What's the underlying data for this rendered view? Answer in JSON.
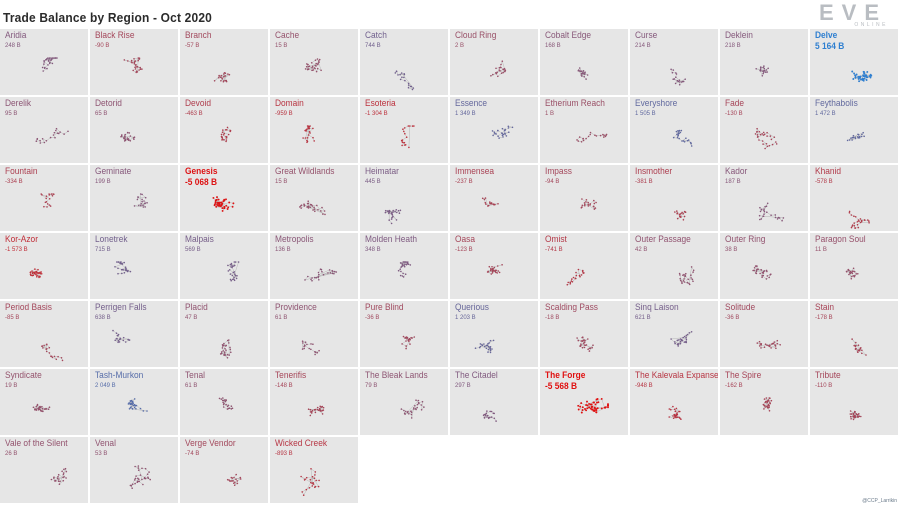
{
  "title": "Trade Balance by Region - Oct 2020",
  "logo": {
    "word": "EVE",
    "sub": "ONLINE"
  },
  "credit": "@CCP_Larrikin",
  "colors": {
    "positive_max": "#2f7fd0",
    "negative_max": "#e01010",
    "neutral": "#9b4f66",
    "cell_bg": "#e6e6e6"
  },
  "chart_data": {
    "type": "small-multiples",
    "title": "Trade Balance by Region - Oct 2020",
    "unit": "B",
    "regions": [
      {
        "name": "Aridia",
        "value_label": "248 B",
        "value": 248
      },
      {
        "name": "Black Rise",
        "value_label": "-90 B",
        "value": -90
      },
      {
        "name": "Branch",
        "value_label": "-57 B",
        "value": -57
      },
      {
        "name": "Cache",
        "value_label": "15 B",
        "value": 15
      },
      {
        "name": "Catch",
        "value_label": "744 B",
        "value": 744
      },
      {
        "name": "Cloud Ring",
        "value_label": "2 B",
        "value": 2
      },
      {
        "name": "Cobalt Edge",
        "value_label": "168 B",
        "value": 168
      },
      {
        "name": "Curse",
        "value_label": "214 B",
        "value": 214
      },
      {
        "name": "Deklein",
        "value_label": "218 B",
        "value": 218
      },
      {
        "name": "Delve",
        "value_label": "5 164 B",
        "value": 5164
      },
      {
        "name": "Derelik",
        "value_label": "95 B",
        "value": 95
      },
      {
        "name": "Detorid",
        "value_label": "65 B",
        "value": 65
      },
      {
        "name": "Devoid",
        "value_label": "-463 B",
        "value": -463
      },
      {
        "name": "Domain",
        "value_label": "-959 B",
        "value": -959
      },
      {
        "name": "Esoteria",
        "value_label": "-1 304 B",
        "value": -1304
      },
      {
        "name": "Essence",
        "value_label": "1 349 B",
        "value": 1349
      },
      {
        "name": "Etherium Reach",
        "value_label": "1 B",
        "value": 1
      },
      {
        "name": "Everyshore",
        "value_label": "1 505 B",
        "value": 1505
      },
      {
        "name": "Fade",
        "value_label": "-130 B",
        "value": -130
      },
      {
        "name": "Feythabolis",
        "value_label": "1 472 B",
        "value": 1472
      },
      {
        "name": "Fountain",
        "value_label": "-334 B",
        "value": -334
      },
      {
        "name": "Geminate",
        "value_label": "199 B",
        "value": 199
      },
      {
        "name": "Genesis",
        "value_label": "-5 068 B",
        "value": -5068
      },
      {
        "name": "Great Wildlands",
        "value_label": "15 B",
        "value": 15
      },
      {
        "name": "Heimatar",
        "value_label": "445 B",
        "value": 445
      },
      {
        "name": "Immensea",
        "value_label": "-237 B",
        "value": -237
      },
      {
        "name": "Impass",
        "value_label": "-94 B",
        "value": -94
      },
      {
        "name": "Insmother",
        "value_label": "-381 B",
        "value": -381
      },
      {
        "name": "Kador",
        "value_label": "187 B",
        "value": 187
      },
      {
        "name": "Khanid",
        "value_label": "-578 B",
        "value": -578
      },
      {
        "name": "Kor-Azor",
        "value_label": "-1 573 B",
        "value": -1573
      },
      {
        "name": "Lonetrek",
        "value_label": "715 B",
        "value": 715
      },
      {
        "name": "Malpais",
        "value_label": "569 B",
        "value": 569
      },
      {
        "name": "Metropolis",
        "value_label": "136 B",
        "value": 136
      },
      {
        "name": "Molden Heath",
        "value_label": "348 B",
        "value": 348
      },
      {
        "name": "Oasa",
        "value_label": "-123 B",
        "value": -123
      },
      {
        "name": "Omist",
        "value_label": "-741 B",
        "value": -741
      },
      {
        "name": "Outer Passage",
        "value_label": "42 B",
        "value": 42
      },
      {
        "name": "Outer Ring",
        "value_label": "38 B",
        "value": 38
      },
      {
        "name": "Paragon Soul",
        "value_label": "11 B",
        "value": 11
      },
      {
        "name": "Period Basis",
        "value_label": "-85 B",
        "value": -85
      },
      {
        "name": "Perrigen Falls",
        "value_label": "638 B",
        "value": 638
      },
      {
        "name": "Placid",
        "value_label": "47 B",
        "value": 47
      },
      {
        "name": "Providence",
        "value_label": "61 B",
        "value": 61
      },
      {
        "name": "Pure Blind",
        "value_label": "-36 B",
        "value": -36
      },
      {
        "name": "Querious",
        "value_label": "1 203 B",
        "value": 1203
      },
      {
        "name": "Scalding Pass",
        "value_label": "-18 B",
        "value": -18
      },
      {
        "name": "Sinq Laison",
        "value_label": "621 B",
        "value": 621
      },
      {
        "name": "Solitude",
        "value_label": "-36 B",
        "value": -36
      },
      {
        "name": "Stain",
        "value_label": "-178 B",
        "value": -178
      },
      {
        "name": "Syndicate",
        "value_label": "19 B",
        "value": 19
      },
      {
        "name": "Tash-Murkon",
        "value_label": "2 049 B",
        "value": 2049
      },
      {
        "name": "Tenal",
        "value_label": "61 B",
        "value": 61
      },
      {
        "name": "Tenerifis",
        "value_label": "-148 B",
        "value": -148
      },
      {
        "name": "The Bleak Lands",
        "value_label": "79 B",
        "value": 79
      },
      {
        "name": "The Citadel",
        "value_label": "297 B",
        "value": 297
      },
      {
        "name": "The Forge",
        "value_label": "-5 568 B",
        "value": -5568
      },
      {
        "name": "The Kalevala Expanse",
        "value_label": "-948 B",
        "value": -948
      },
      {
        "name": "The Spire",
        "value_label": "-162 B",
        "value": -162
      },
      {
        "name": "Tribute",
        "value_label": "-110 B",
        "value": -110
      },
      {
        "name": "Vale of the Silent",
        "value_label": "26 B",
        "value": 26
      },
      {
        "name": "Venal",
        "value_label": "53 B",
        "value": 53
      },
      {
        "name": "Verge Vendor",
        "value_label": "-74 B",
        "value": -74
      },
      {
        "name": "Wicked Creek",
        "value_label": "-893 B",
        "value": -893
      }
    ]
  }
}
